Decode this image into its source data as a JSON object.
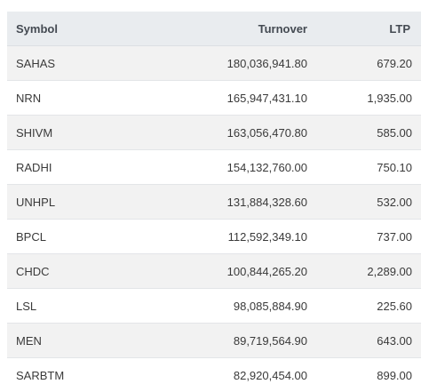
{
  "table": {
    "headers": {
      "symbol": "Symbol",
      "turnover": "Turnover",
      "ltp": "LTP"
    },
    "rows": [
      {
        "symbol": "SAHAS",
        "turnover": "180,036,941.80",
        "ltp": "679.20"
      },
      {
        "symbol": "NRN",
        "turnover": "165,947,431.10",
        "ltp": "1,935.00"
      },
      {
        "symbol": "SHIVM",
        "turnover": "163,056,470.80",
        "ltp": "585.00"
      },
      {
        "symbol": "RADHI",
        "turnover": "154,132,760.00",
        "ltp": "750.10"
      },
      {
        "symbol": "UNHPL",
        "turnover": "131,884,328.60",
        "ltp": "532.00"
      },
      {
        "symbol": "BPCL",
        "turnover": "112,592,349.10",
        "ltp": "737.00"
      },
      {
        "symbol": "CHDC",
        "turnover": "100,844,265.20",
        "ltp": "2,289.00"
      },
      {
        "symbol": "LSL",
        "turnover": "98,085,884.90",
        "ltp": "225.60"
      },
      {
        "symbol": "MEN",
        "turnover": "89,719,564.90",
        "ltp": "643.00"
      },
      {
        "symbol": "SARBTM",
        "turnover": "82,920,454.00",
        "ltp": "899.00"
      }
    ]
  }
}
